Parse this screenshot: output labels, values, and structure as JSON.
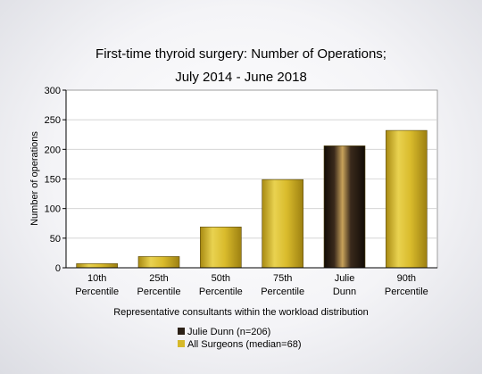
{
  "chart_data": {
    "type": "bar",
    "title": [
      "First-time thyroid surgery: Number of Operations;",
      "July 2014 - June 2018"
    ],
    "xlabel": "Representative consultants within the workload distribution",
    "ylabel": "Number of operations",
    "ylim": [
      0,
      300
    ],
    "yticks": [
      0,
      50,
      100,
      150,
      200,
      250,
      300
    ],
    "grid": true,
    "categories": [
      [
        "10th",
        "Percentile"
      ],
      [
        "25th",
        "Percentile"
      ],
      [
        "50th",
        "Percentile"
      ],
      [
        "75th",
        "Percentile"
      ],
      [
        "Julie",
        "Dunn"
      ],
      [
        "90th",
        "Percentile"
      ]
    ],
    "values": [
      7,
      19,
      69,
      149,
      206,
      232
    ],
    "highlight_index": 4,
    "colors": {
      "all": "#d6b92a",
      "highlight": "#3a2a1c"
    },
    "legend": [
      {
        "label": "Julie Dunn (n=206)",
        "color": "#2b2016"
      },
      {
        "label": "All Surgeons (median=68)",
        "color": "#d6b92a"
      }
    ]
  }
}
